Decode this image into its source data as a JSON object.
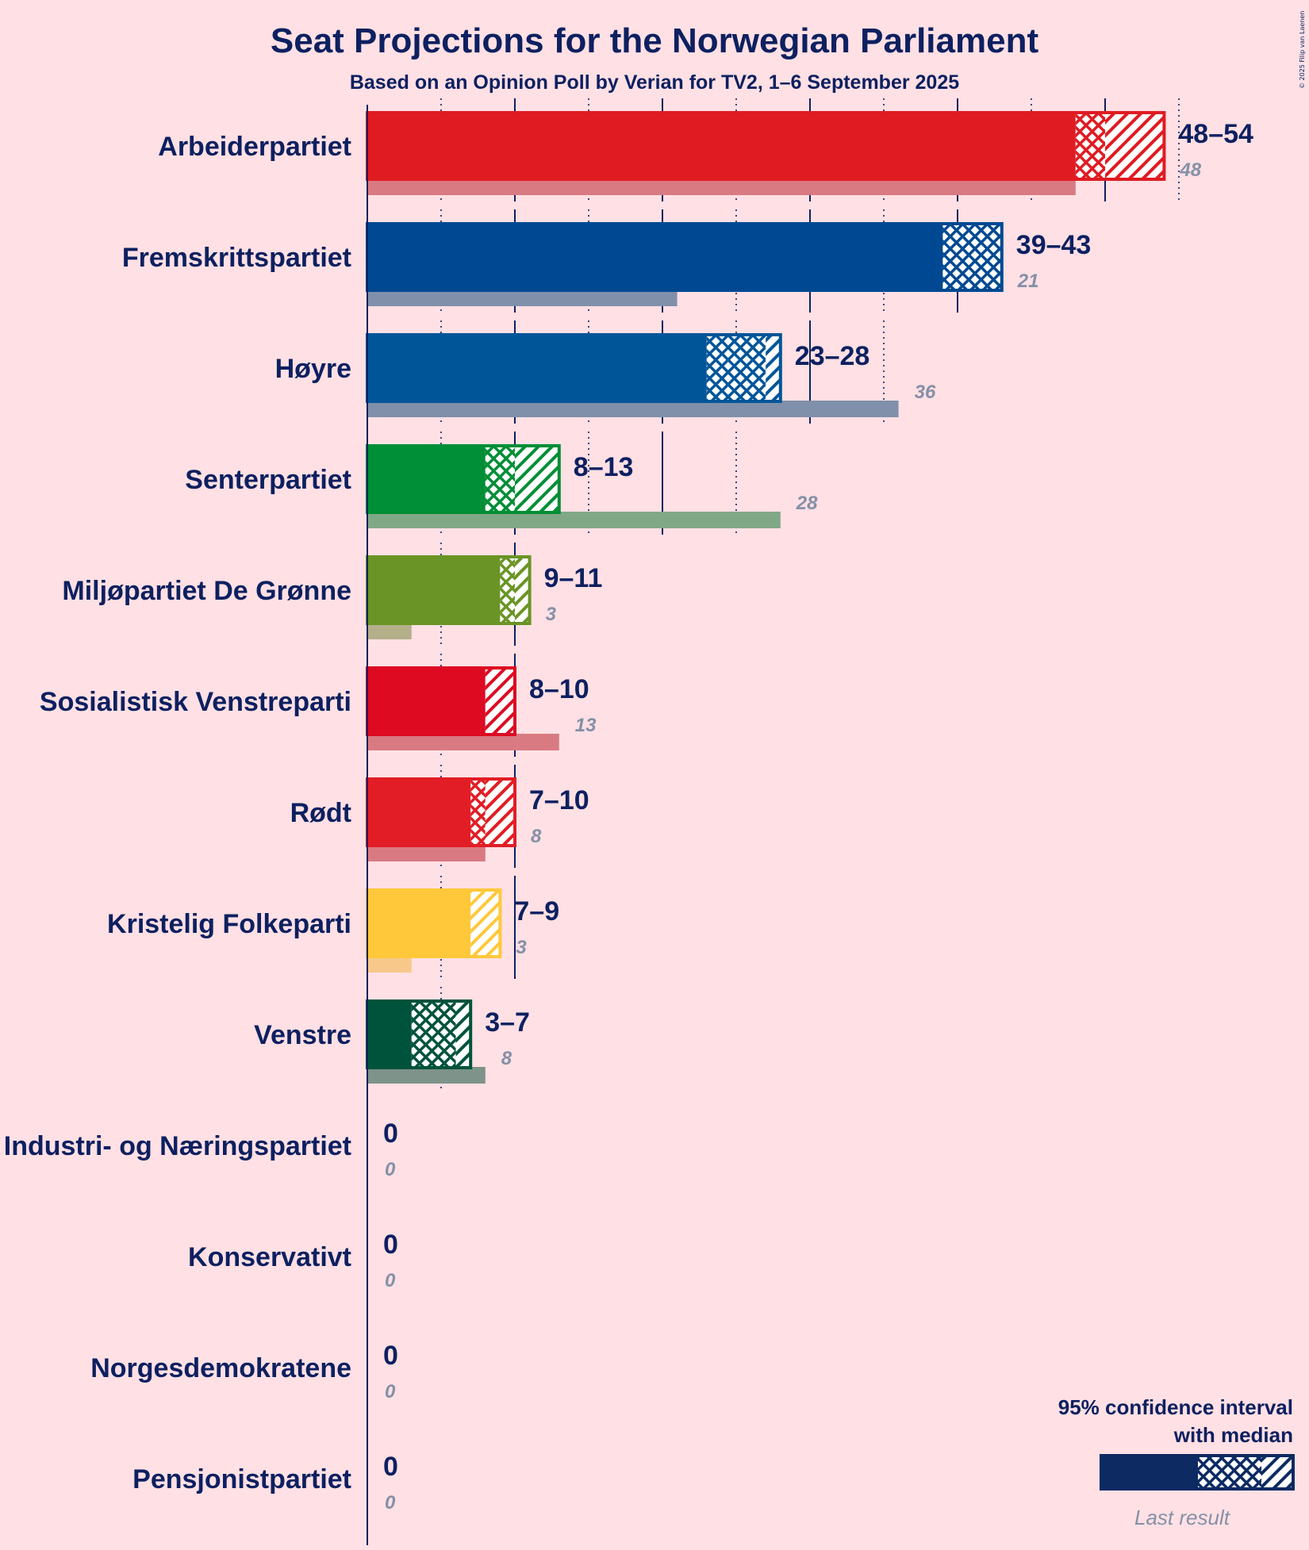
{
  "title": "Seat Projections for the Norwegian Parliament",
  "subtitle": "Based on an Opinion Poll by Verian for TV2, 1–6 September 2025",
  "copyright": "© 2025 Filip van Laenen",
  "legend": {
    "line1": "95% confidence interval",
    "line2": "with median",
    "last_result": "Last result",
    "color": "#0D2A62"
  },
  "chart_data": {
    "type": "bar",
    "orientation": "horizontal",
    "title": "Seat Projections for the Norwegian Parliament",
    "subtitle": "Based on an Opinion Poll by Verian for TV2, 1–6 September 2025",
    "xlim": [
      0,
      54
    ],
    "grid_step": 5,
    "series": [
      {
        "party": "Arbeiderpartiet",
        "low": 48,
        "median": 50,
        "high": 54,
        "label": "48–54",
        "last": 48,
        "last_label": "48",
        "color": "#E01B22",
        "last_color": "#D97A82"
      },
      {
        "party": "Fremskrittspartiet",
        "low": 39,
        "median": 43,
        "high": 43,
        "label": "39–43",
        "last": 21,
        "last_label": "21",
        "color": "#004992",
        "last_color": "#8090AA"
      },
      {
        "party": "Høyre",
        "low": 23,
        "median": 27,
        "high": 28,
        "label": "23–28",
        "last": 36,
        "last_label": "36",
        "color": "#005599",
        "last_color": "#8090AA"
      },
      {
        "party": "Senterpartiet",
        "low": 8,
        "median": 10,
        "high": 13,
        "label": "8–13",
        "last": 28,
        "last_label": "28",
        "color": "#008E36",
        "last_color": "#80A886"
      },
      {
        "party": "Miljøpartiet De Grønne",
        "low": 9,
        "median": 10,
        "high": 11,
        "label": "9–11",
        "last": 3,
        "last_label": "3",
        "color": "#6A9425",
        "last_color": "#B4B08A"
      },
      {
        "party": "Sosialistisk Venstreparti",
        "low": 8,
        "median": 8,
        "high": 10,
        "label": "8–10",
        "last": 13,
        "last_label": "13",
        "color": "#DD0A22",
        "last_color": "#D97A82"
      },
      {
        "party": "Rødt",
        "low": 7,
        "median": 8,
        "high": 10,
        "label": "7–10",
        "last": 8,
        "last_label": "8",
        "color": "#E21D25",
        "last_color": "#D97A82"
      },
      {
        "party": "Kristelig Folkeparti",
        "low": 7,
        "median": 7,
        "high": 9,
        "label": "7–9",
        "last": 3,
        "last_label": "3",
        "color": "#FFC83A",
        "last_color": "#F7C88A"
      },
      {
        "party": "Venstre",
        "low": 3,
        "median": 6,
        "high": 7,
        "label": "3–7",
        "last": 8,
        "last_label": "8",
        "color": "#00533B",
        "last_color": "#7E938A"
      },
      {
        "party": "Industri- og Næringspartiet",
        "low": 0,
        "median": 0,
        "high": 0,
        "label": "0",
        "last": 0,
        "last_label": "0",
        "color": "#0D2A62",
        "last_color": "#8090AA"
      },
      {
        "party": "Konservativt",
        "low": 0,
        "median": 0,
        "high": 0,
        "label": "0",
        "last": 0,
        "last_label": "0",
        "color": "#0D2A62",
        "last_color": "#8090AA"
      },
      {
        "party": "Norgesdemokratene",
        "low": 0,
        "median": 0,
        "high": 0,
        "label": "0",
        "last": 0,
        "last_label": "0",
        "color": "#0D2A62",
        "last_color": "#8090AA"
      },
      {
        "party": "Pensjonistpartiet",
        "low": 0,
        "median": 0,
        "high": 0,
        "label": "0",
        "last": 0,
        "last_label": "0",
        "color": "#0D2A62",
        "last_color": "#8090AA"
      }
    ]
  }
}
